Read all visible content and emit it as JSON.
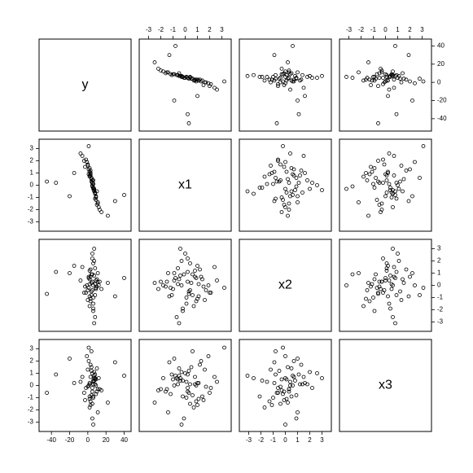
{
  "chart_data": {
    "type": "scatter_matrix",
    "point_color": "#000000",
    "variables": [
      {
        "name": "y",
        "lim": [
          -50,
          44
        ],
        "ticks": [
          -40,
          -20,
          0,
          20,
          40
        ],
        "values": [
          5,
          8,
          2,
          -3,
          10,
          6,
          4,
          12,
          -2,
          7,
          3,
          9,
          1,
          15,
          -6,
          6,
          4,
          2,
          11,
          8,
          0,
          5,
          -45,
          40,
          3,
          7,
          -1,
          9,
          6,
          2,
          -35,
          13,
          4,
          8,
          5,
          -8,
          6,
          3,
          10,
          1,
          7,
          22,
          -15,
          4,
          2,
          9,
          5,
          0,
          6,
          3,
          -4,
          8,
          30,
          2,
          6,
          11,
          -20,
          5,
          7,
          1
        ]
      },
      {
        "name": "x1",
        "lim": [
          -3.5,
          3.5
        ],
        "ticks": [
          -3,
          -2,
          -1,
          0,
          1,
          2,
          3
        ],
        "values": [
          0.2,
          -1.1,
          0.8,
          1.5,
          -0.5,
          0.1,
          0.6,
          -1.8,
          2.1,
          -0.3,
          1.0,
          -0.9,
          1.3,
          -2.2,
          2.4,
          -0.2,
          0.5,
          1.1,
          -1.4,
          -0.6,
          1.7,
          0.0,
          0.3,
          -0.8,
          0.9,
          -0.4,
          1.9,
          -1.2,
          0.4,
          0.7,
          0.2,
          -2.0,
          0.3,
          -0.7,
          -0.1,
          2.6,
          0.1,
          1.2,
          -1.6,
          0.9,
          -0.5,
          -2.5,
          1.0,
          0.6,
          1.4,
          -1.0,
          0.2,
          1.6,
          -0.3,
          0.8,
          2.0,
          -0.6,
          -1.3,
          1.1,
          -0.2,
          -1.5,
          -0.9,
          0.4,
          -0.4,
          3.2
        ]
      },
      {
        "name": "x2",
        "lim": [
          -3.5,
          3.5
        ],
        "ticks": [
          -3,
          -2,
          -1,
          0,
          1,
          2,
          3
        ],
        "values": [
          0.3,
          -0.8,
          1.2,
          -0.1,
          0.5,
          -1.5,
          0.9,
          0.0,
          -0.6,
          2.0,
          -1.1,
          0.4,
          0.7,
          -0.3,
          1.5,
          -2.1,
          0.2,
          -0.9,
          1.0,
          0.1,
          -0.4,
          2.6,
          -0.7,
          0.6,
          -1.3,
          0.8,
          0.0,
          -0.2,
          1.8,
          -1.7,
          1.1,
          0.3,
          -0.5,
          -2.6,
          0.9,
          0.4,
          -1.0,
          1.3,
          -0.1,
          0.6,
          -3.1,
          0.2,
          1.6,
          -0.8,
          0.5,
          -0.3,
          2.2,
          -1.2,
          0.0,
          0.7,
          -0.6,
          1.4,
          -0.9,
          0.1,
          -1.9,
          0.3,
          1.0,
          -0.4,
          3.0,
          -0.2
        ]
      },
      {
        "name": "x3",
        "lim": [
          -3.5,
          3.5
        ],
        "ticks": [
          -3,
          -2,
          -1,
          0,
          1,
          2,
          3
        ],
        "values": [
          -0.5,
          0.9,
          0.1,
          -1.2,
          1.4,
          0.3,
          -0.8,
          0.6,
          -0.2,
          1.1,
          -1.6,
          0.0,
          2.0,
          -0.4,
          0.7,
          -0.9,
          1.5,
          0.2,
          -2.2,
          0.5,
          -0.1,
          1.0,
          -0.6,
          0.8,
          -1.3,
          0.4,
          2.4,
          -0.7,
          0.1,
          -1.8,
          0.9,
          -0.3,
          1.2,
          0.6,
          -2.7,
          0.3,
          -1.0,
          1.7,
          -0.5,
          0.0,
          0.8,
          -1.4,
          0.2,
          2.8,
          -0.9,
          0.5,
          -0.2,
          1.3,
          -3.2,
          0.7,
          -0.6,
          0.1,
          1.9,
          -1.1,
          0.4,
          -0.3,
          2.2,
          -1.5,
          0.6,
          3.1
        ]
      }
    ]
  }
}
